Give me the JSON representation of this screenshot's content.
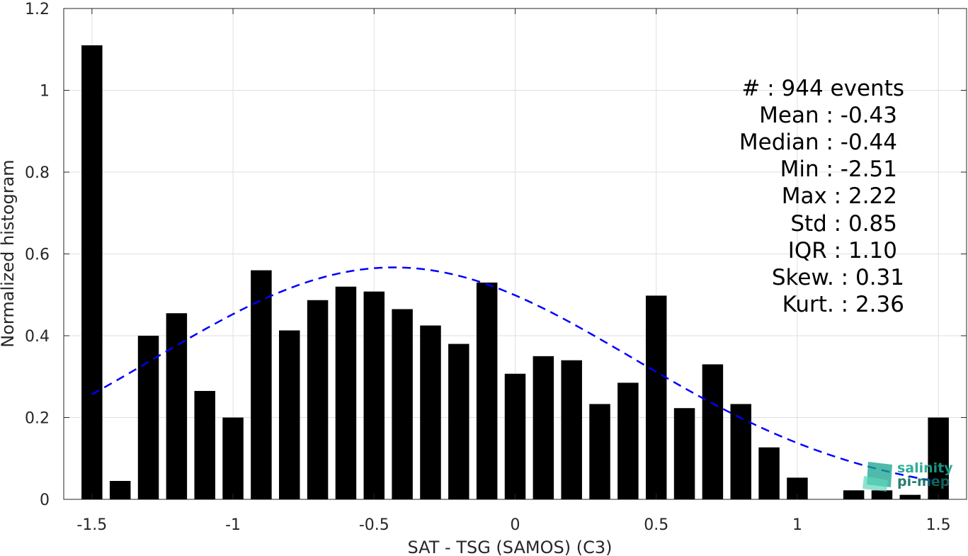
{
  "chart_data": {
    "type": "bar",
    "xlabel": "SAT - TSG (SAMOS) (C3)",
    "ylabel": "Normalized histogram",
    "xlim": [
      -1.6,
      1.6
    ],
    "ylim": [
      0,
      1.2
    ],
    "xticks": [
      -1.5,
      -1,
      -0.5,
      0,
      0.5,
      1,
      1.5
    ],
    "xtick_labels": [
      "-1.5",
      "-1",
      "-0.5",
      "0",
      "0.5",
      "1",
      "1.5"
    ],
    "yticks": [
      0,
      0.2,
      0.4,
      0.6,
      0.8,
      1,
      1.2
    ],
    "ytick_labels": [
      "0",
      "0.2",
      "0.4",
      "0.6",
      "0.8",
      "1",
      "1.2"
    ],
    "grid": true,
    "bar_color": "#000000",
    "bin_width": 0.1,
    "bins": [
      -1.5,
      -1.4,
      -1.3,
      -1.2,
      -1.1,
      -1.0,
      -0.9,
      -0.8,
      -0.7,
      -0.6,
      -0.5,
      -0.4,
      -0.3,
      -0.2,
      -0.1,
      0.0,
      0.1,
      0.2,
      0.3,
      0.4,
      0.5,
      0.6,
      0.7,
      0.8,
      0.9,
      1.0,
      1.1,
      1.2,
      1.3,
      1.4,
      1.5
    ],
    "values": [
      1.11,
      0.045,
      0.4,
      0.455,
      0.265,
      0.2,
      0.56,
      0.413,
      0.487,
      0.52,
      0.508,
      0.465,
      0.425,
      0.38,
      0.53,
      0.307,
      0.35,
      0.34,
      0.233,
      0.285,
      0.498,
      0.223,
      0.33,
      0.233,
      0.127,
      0.053,
      0.0,
      0.022,
      0.022,
      0.011,
      0.2
    ],
    "fit_curve": {
      "type": "normal",
      "mean": -0.43,
      "std": 0.85,
      "peak": 0.567,
      "range": [
        -1.5,
        1.5
      ],
      "color": "#0000ff",
      "style": "dashed"
    }
  },
  "stats": {
    "lines": [
      "#  : 944 events",
      "Mean : -0.43",
      "Median : -0.44",
      "Min : -2.51",
      "Max : 2.22",
      "Std : 0.85",
      "IQR : 1.10",
      "Skew. : 0.31",
      "Kurt. : 2.36"
    ]
  },
  "logo": {
    "line1": "salinity",
    "line2": "pi-mep",
    "color": "#1aa58f"
  }
}
